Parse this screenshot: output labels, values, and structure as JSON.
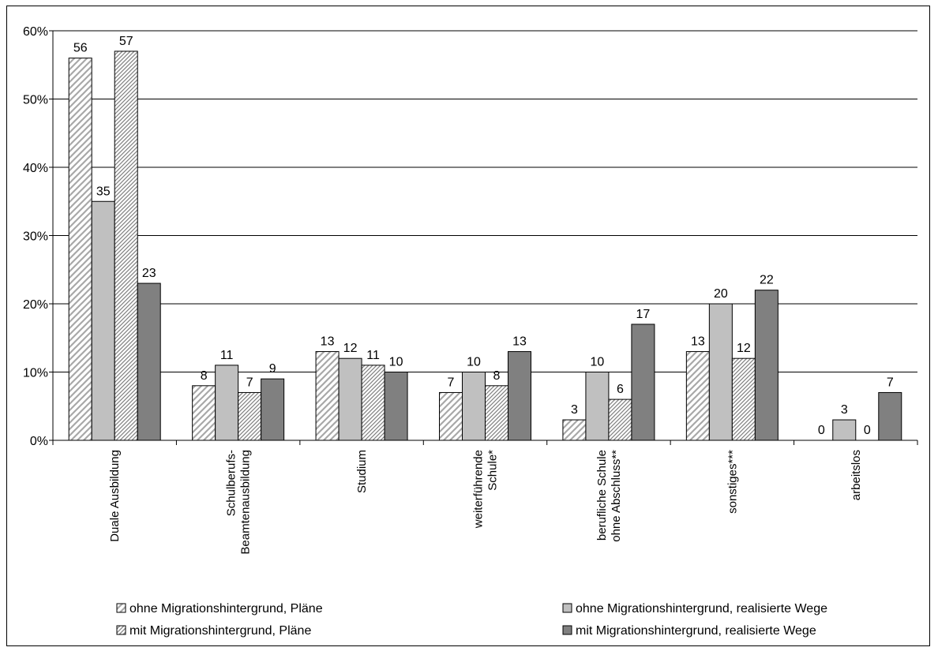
{
  "chart_data": {
    "type": "bar",
    "categories": [
      [
        "Duale Ausbildung"
      ],
      [
        "Schulberufs-",
        "Beamtenausbildung"
      ],
      [
        "Studium"
      ],
      [
        "weiterführende",
        "Schule*"
      ],
      [
        "berufliche Schule",
        "ohne Abschluss**"
      ],
      [
        "sonstiges***"
      ],
      [
        "arbeitslos"
      ]
    ],
    "series": [
      {
        "name": "ohne Migrationshintergrund, Pläne",
        "values": [
          56,
          8,
          13,
          7,
          3,
          13,
          0
        ],
        "style": "hatch-light",
        "color": "#ffffff"
      },
      {
        "name": "ohne Migrationshintergrund, realisierte Wege",
        "values": [
          35,
          11,
          12,
          10,
          10,
          20,
          3
        ],
        "style": "solid",
        "color": "#c0c0c0"
      },
      {
        "name": "mit Migrationshintergrund, Pläne",
        "values": [
          57,
          7,
          11,
          8,
          6,
          12,
          0
        ],
        "style": "hatch-dense",
        "color": "#ffffff"
      },
      {
        "name": "mit Migrationshintergrund, realisierte Wege",
        "values": [
          23,
          9,
          10,
          13,
          17,
          22,
          7
        ],
        "style": "solid",
        "color": "#808080"
      }
    ],
    "yticks": [
      "0%",
      "10%",
      "20%",
      "30%",
      "40%",
      "50%",
      "60%"
    ],
    "ylim": [
      0,
      60
    ],
    "grid": true,
    "legend_position": "bottom"
  }
}
